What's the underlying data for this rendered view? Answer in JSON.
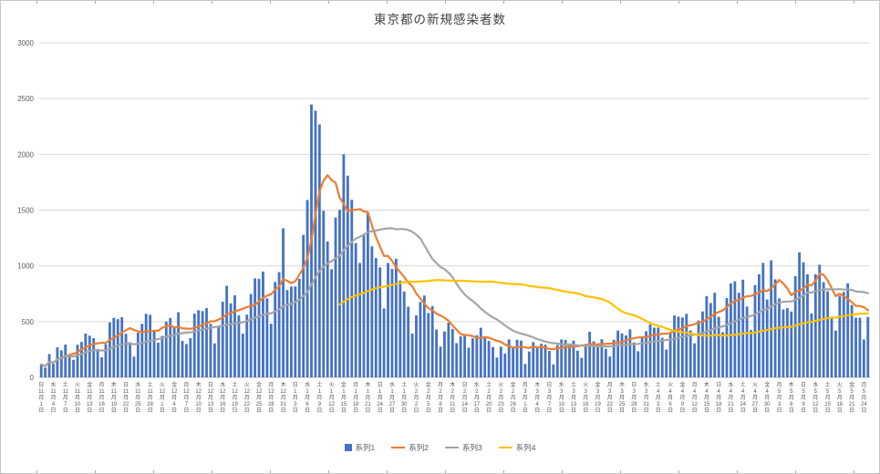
{
  "chart_data": {
    "type": "bar",
    "combo": "bar with line overlays",
    "title": "東京都の新規感染者数",
    "grid": true,
    "y_axis": {
      "min": 0,
      "max": 3000,
      "step": 500,
      "ticks": [
        "0",
        "500",
        "1000",
        "1500",
        "2000",
        "2500",
        "3000"
      ]
    },
    "x_tick_interval_days": 3,
    "x_tick_suffix": {
      "month": "月",
      "day": "日"
    },
    "x_ticks": [
      [
        "日",
        "11",
        "1"
      ],
      [
        "水",
        "11",
        "4"
      ],
      [
        "土",
        "11",
        "7"
      ],
      [
        "火",
        "11",
        "10"
      ],
      [
        "金",
        "11",
        "13"
      ],
      [
        "月",
        "11",
        "16"
      ],
      [
        "木",
        "11",
        "19"
      ],
      [
        "日",
        "11",
        "22"
      ],
      [
        "水",
        "11",
        "25"
      ],
      [
        "土",
        "11",
        "28"
      ],
      [
        "火",
        "12",
        "1"
      ],
      [
        "金",
        "12",
        "4"
      ],
      [
        "月",
        "12",
        "7"
      ],
      [
        "木",
        "12",
        "10"
      ],
      [
        "日",
        "12",
        "13"
      ],
      [
        "水",
        "12",
        "16"
      ],
      [
        "土",
        "12",
        "19"
      ],
      [
        "火",
        "12",
        "22"
      ],
      [
        "金",
        "12",
        "25"
      ],
      [
        "月",
        "12",
        "28"
      ],
      [
        "木",
        "12",
        "31"
      ],
      [
        "日",
        "1",
        "3"
      ],
      [
        "水",
        "1",
        "6"
      ],
      [
        "土",
        "1",
        "9"
      ],
      [
        "火",
        "1",
        "12"
      ],
      [
        "金",
        "1",
        "15"
      ],
      [
        "月",
        "1",
        "18"
      ],
      [
        "木",
        "1",
        "21"
      ],
      [
        "日",
        "1",
        "24"
      ],
      [
        "水",
        "1",
        "27"
      ],
      [
        "土",
        "1",
        "30"
      ],
      [
        "火",
        "2",
        "2"
      ],
      [
        "金",
        "2",
        "5"
      ],
      [
        "月",
        "2",
        "8"
      ],
      [
        "木",
        "2",
        "11"
      ],
      [
        "日",
        "2",
        "14"
      ],
      [
        "水",
        "2",
        "17"
      ],
      [
        "土",
        "2",
        "20"
      ],
      [
        "火",
        "2",
        "23"
      ],
      [
        "金",
        "2",
        "26"
      ],
      [
        "月",
        "3",
        "1"
      ],
      [
        "木",
        "3",
        "4"
      ],
      [
        "日",
        "3",
        "7"
      ],
      [
        "水",
        "3",
        "10"
      ],
      [
        "土",
        "3",
        "13"
      ],
      [
        "火",
        "3",
        "16"
      ],
      [
        "金",
        "3",
        "19"
      ],
      [
        "月",
        "3",
        "22"
      ],
      [
        "木",
        "3",
        "25"
      ],
      [
        "日",
        "3",
        "28"
      ],
      [
        "水",
        "3",
        "31"
      ],
      [
        "土",
        "4",
        "3"
      ],
      [
        "火",
        "4",
        "6"
      ],
      [
        "金",
        "4",
        "9"
      ],
      [
        "月",
        "4",
        "12"
      ],
      [
        "木",
        "4",
        "15"
      ],
      [
        "日",
        "4",
        "18"
      ],
      [
        "水",
        "4",
        "21"
      ],
      [
        "土",
        "4",
        "24"
      ],
      [
        "火",
        "4",
        "27"
      ],
      [
        "金",
        "4",
        "30"
      ],
      [
        "月",
        "5",
        "3"
      ],
      [
        "木",
        "5",
        "6"
      ],
      [
        "日",
        "5",
        "9"
      ],
      [
        "水",
        "5",
        "12"
      ],
      [
        "土",
        "5",
        "15"
      ],
      [
        "火",
        "5",
        "18"
      ],
      [
        "金",
        "5",
        "21"
      ],
      [
        "月",
        "5",
        "24"
      ]
    ],
    "series": [
      {
        "name": "系列1",
        "type": "bar",
        "color": "#4472c4",
        "values": [
          116,
          87,
          209,
          122,
          269,
          242,
          294,
          189,
          157,
          293,
          317,
          393,
          374,
          352,
          255,
          180,
          298,
          493,
          534,
          522,
          539,
          391,
          314,
          186,
          401,
          481,
          570,
          561,
          418,
          311,
          372,
          500,
          533,
          449,
          584,
          327,
          299,
          352,
          572,
          602,
          595,
          621,
          480,
          305,
          460,
          678,
          822,
          664,
          736,
          556,
          392,
          563,
          748,
          888,
          884,
          949,
          708,
          481,
          856,
          944,
          1337,
          783,
          814,
          816,
          884,
          1278,
          1591,
          2447,
          2392,
          2268,
          1494,
          1219,
          970,
          1433,
          1502,
          2001,
          1809,
          1592,
          1204,
          1026,
          1274,
          1471,
          1175,
          1070,
          986,
          618,
          1026,
          973,
          1064,
          868,
          769,
          633,
          393,
          556,
          676,
          734,
          577,
          639,
          429,
          276,
          412,
          491,
          434,
          307,
          369,
          371,
          266,
          350,
          378,
          445,
          353,
          327,
          272,
          178,
          275,
          213,
          340,
          270,
          337,
          329,
          121,
          232,
          316,
          279,
          301,
          293,
          237,
          116,
          290,
          340,
          335,
          304,
          330,
          239,
          175,
          300,
          409,
          323,
          303,
          342,
          256,
          187,
          337,
          420,
          394,
          376,
          430,
          313,
          234,
          364,
          414,
          475,
          446,
          446,
          355,
          249,
          399,
          555,
          545,
          537,
          570,
          421,
          306,
          510,
          591,
          729,
          667,
          759,
          543,
          405,
          711,
          843,
          861,
          759,
          876,
          635,
          425,
          828,
          925,
          1027,
          698,
          1050,
          879,
          708,
          609,
          621,
          591,
          907,
          1121,
          1032,
          925,
          573,
          925,
          1010,
          854,
          772,
          542,
          419,
          732,
          766,
          843,
          649,
          535,
          535,
          340,
          542
        ]
      },
      {
        "name": "系列2",
        "type": "line",
        "color": "#ed7d31",
        "derived_from": "系列1",
        "derivation": "moving_average",
        "window_days": 7,
        "full_window_only": false
      },
      {
        "name": "系列3",
        "type": "line",
        "color": "#a5a5a5",
        "derived_from": "系列1",
        "derivation": "moving_average",
        "window_days": 28,
        "full_window_only": false
      },
      {
        "name": "系列4",
        "type": "line",
        "color": "#ffc000",
        "derived_from": "系列1",
        "derivation": "moving_average",
        "window_days": 75,
        "full_window_only": true
      }
    ],
    "legend": {
      "position": "bottom",
      "entries": [
        "系列1",
        "系列2",
        "系列3",
        "系列4"
      ]
    },
    "colors": {
      "bar": "#4472c4",
      "line2": "#ed7d31",
      "line3": "#a5a5a5",
      "line4": "#ffc000",
      "gridline": "#d9d9d9",
      "axis_line": "#bfbfbf",
      "axis_text": "#595959",
      "title_text": "#404040"
    }
  }
}
